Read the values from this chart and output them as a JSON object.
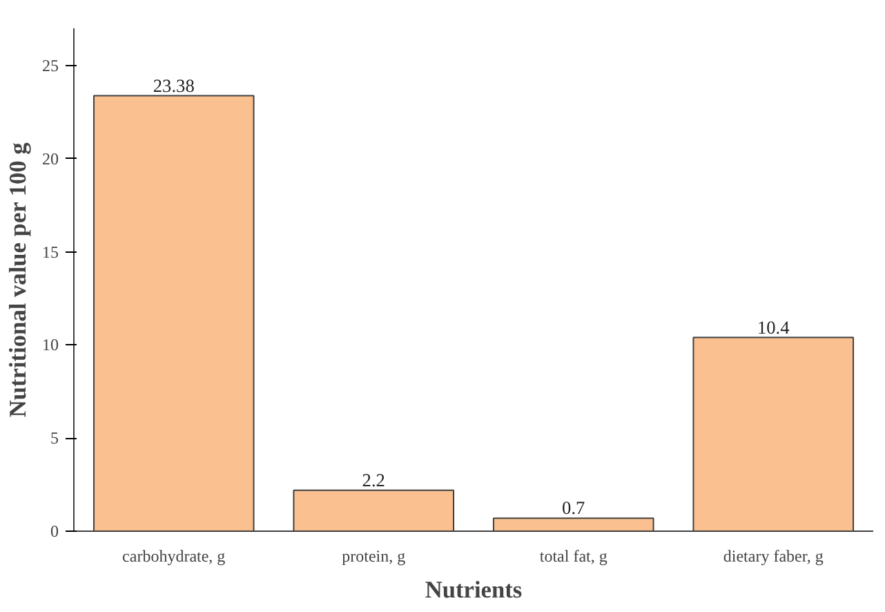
{
  "chart_data": {
    "type": "bar",
    "xlabel": "Nutrients",
    "ylabel": "Nutritional value per 100 g",
    "categories": [
      "carbohydrate, g",
      "protein, g",
      "total fat, g",
      "dietary faber, g"
    ],
    "values": [
      23.38,
      2.2,
      0.7,
      10.4
    ],
    "color": "#fac090",
    "data_labels": true,
    "ylim": [
      0,
      27
    ],
    "yticks": [
      0,
      5,
      10,
      15,
      20,
      25
    ],
    "grid": false
  }
}
